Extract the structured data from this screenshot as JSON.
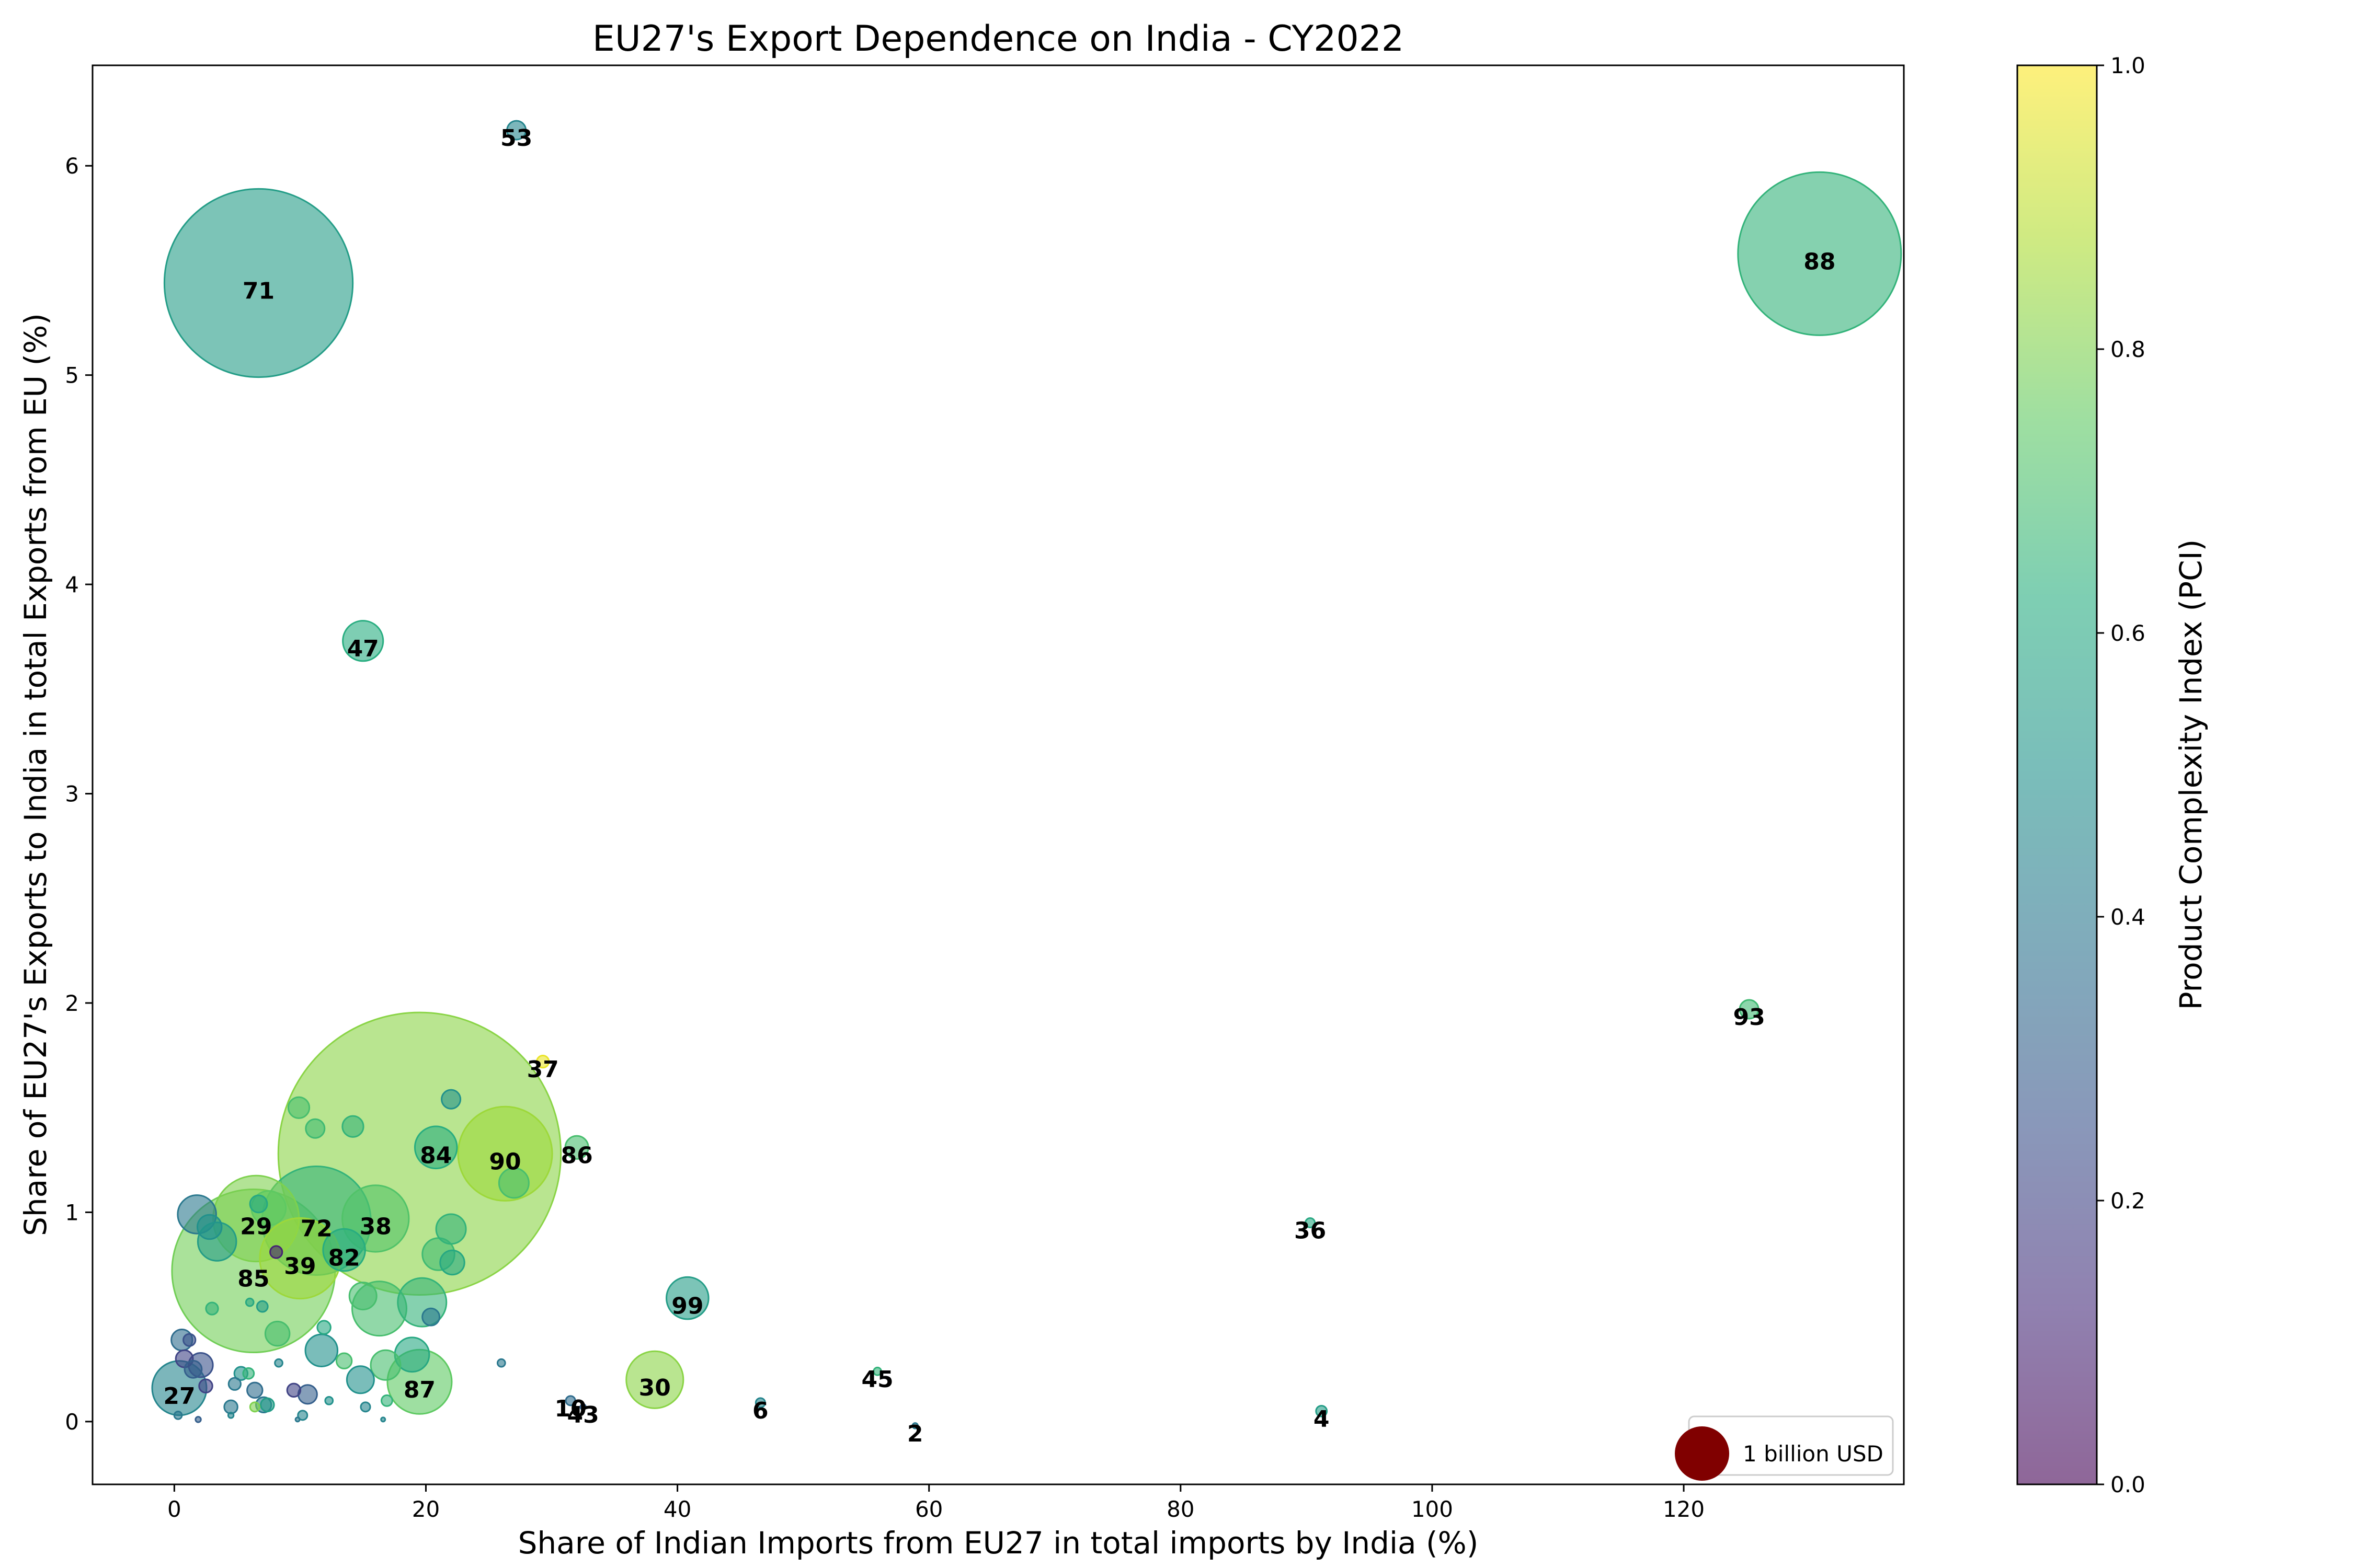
{
  "chart_data": {
    "type": "scatter",
    "title": "EU27's Export Dependence on India - CY2022",
    "xlabel": "Share of Indian Imports from EU27 in total imports by India (%)",
    "ylabel": "Share of EU27's Exports to India in total Exports from EU (%)",
    "xlim": [
      -6.5,
      137.5
    ],
    "ylim": [
      -0.3,
      6.48
    ],
    "xticks": [
      0,
      20,
      40,
      60,
      80,
      100,
      120
    ],
    "yticks": [
      0,
      1,
      2,
      3,
      4,
      5,
      6
    ],
    "grid": false,
    "colormap": "viridis",
    "colorbar": {
      "label": "Product Complexity Index (PCI)",
      "range": [
        0.0,
        1.0
      ],
      "ticks": [
        "0.0",
        "0.2",
        "0.4",
        "0.6",
        "0.8",
        "1.0"
      ]
    },
    "size_legend": {
      "label": "1 billion USD",
      "x": 121.5,
      "y": -0.15,
      "color": "#800000",
      "size": 1.0
    },
    "points": [
      {
        "x": 6.7,
        "y": 5.44,
        "size": 12.0,
        "pci": 0.55,
        "label": "71"
      },
      {
        "x": 130.8,
        "y": 5.58,
        "size": 9.0,
        "pci": 0.65,
        "label": "88"
      },
      {
        "x": 27.2,
        "y": 6.17,
        "size": 0.12,
        "pci": 0.45,
        "label": "53"
      },
      {
        "x": 15.0,
        "y": 3.73,
        "size": 0.55,
        "pci": 0.62,
        "label": "47"
      },
      {
        "x": 125.2,
        "y": 1.97,
        "size": 0.12,
        "pci": 0.68,
        "label": "93"
      },
      {
        "x": 29.3,
        "y": 1.72,
        "size": 0.05,
        "pci": 0.97,
        "label": "37"
      },
      {
        "x": 19.5,
        "y": 1.28,
        "size": 27.0,
        "pci": 0.82,
        "label": ""
      },
      {
        "x": 26.3,
        "y": 1.28,
        "size": 3.0,
        "pci": 0.85,
        "label": "90"
      },
      {
        "x": 20.8,
        "y": 1.31,
        "size": 0.6,
        "pci": 0.62,
        "label": "84"
      },
      {
        "x": 32.0,
        "y": 1.31,
        "size": 0.18,
        "pci": 0.7,
        "label": "86"
      },
      {
        "x": 22.0,
        "y": 1.54,
        "size": 0.12,
        "pci": 0.5,
        "label": ""
      },
      {
        "x": 6.5,
        "y": 0.97,
        "size": 2.5,
        "pci": 0.8,
        "label": "29"
      },
      {
        "x": 11.3,
        "y": 0.96,
        "size": 4.0,
        "pci": 0.65,
        "label": "72"
      },
      {
        "x": 16.0,
        "y": 0.97,
        "size": 1.5,
        "pci": 0.72,
        "label": "38"
      },
      {
        "x": 13.5,
        "y": 0.82,
        "size": 0.6,
        "pci": 0.62,
        "label": "82"
      },
      {
        "x": 10.0,
        "y": 0.78,
        "size": 2.2,
        "pci": 0.85,
        "label": "39"
      },
      {
        "x": 6.3,
        "y": 0.72,
        "size": 9.0,
        "pci": 0.78,
        "label": "85"
      },
      {
        "x": 40.8,
        "y": 0.59,
        "size": 0.6,
        "pci": 0.55,
        "label": "99"
      },
      {
        "x": 90.3,
        "y": 0.95,
        "size": 0.03,
        "pci": 0.6,
        "label": "36"
      },
      {
        "x": 38.2,
        "y": 0.2,
        "size": 1.1,
        "pci": 0.82,
        "label": "30"
      },
      {
        "x": 19.5,
        "y": 0.19,
        "size": 1.4,
        "pci": 0.75,
        "label": "87"
      },
      {
        "x": 0.4,
        "y": 0.16,
        "size": 1.0,
        "pci": 0.45,
        "label": "27"
      },
      {
        "x": 55.9,
        "y": 0.24,
        "size": 0.02,
        "pci": 0.65,
        "label": "45"
      },
      {
        "x": 31.5,
        "y": 0.1,
        "size": 0.03,
        "pci": 0.35,
        "label": "10"
      },
      {
        "x": 32.5,
        "y": 0.07,
        "size": 0.01,
        "pci": 0.3,
        "label": "43"
      },
      {
        "x": 46.6,
        "y": 0.09,
        "size": 0.03,
        "pci": 0.45,
        "label": "6"
      },
      {
        "x": 58.9,
        "y": -0.02,
        "size": 0.01,
        "pci": 0.4,
        "label": "2"
      },
      {
        "x": 91.2,
        "y": 0.05,
        "size": 0.04,
        "pci": 0.55,
        "label": "4"
      },
      {
        "x": 1.8,
        "y": 0.99,
        "size": 0.5,
        "pci": 0.4,
        "label": ""
      },
      {
        "x": 2.8,
        "y": 0.93,
        "size": 0.2,
        "pci": 0.5,
        "label": ""
      },
      {
        "x": 3.4,
        "y": 0.86,
        "size": 0.5,
        "pci": 0.55,
        "label": ""
      },
      {
        "x": 6.7,
        "y": 1.04,
        "size": 0.1,
        "pci": 0.6,
        "label": ""
      },
      {
        "x": 7.5,
        "y": 1.02,
        "size": 0.4,
        "pci": 0.75,
        "label": ""
      },
      {
        "x": 9.9,
        "y": 1.5,
        "size": 0.15,
        "pci": 0.7,
        "label": ""
      },
      {
        "x": 11.2,
        "y": 1.4,
        "size": 0.12,
        "pci": 0.68,
        "label": ""
      },
      {
        "x": 14.2,
        "y": 1.41,
        "size": 0.15,
        "pci": 0.65,
        "label": ""
      },
      {
        "x": 27.0,
        "y": 1.14,
        "size": 0.3,
        "pci": 0.7,
        "label": ""
      },
      {
        "x": 22.0,
        "y": 0.92,
        "size": 0.3,
        "pci": 0.65,
        "label": ""
      },
      {
        "x": 21.0,
        "y": 0.8,
        "size": 0.35,
        "pci": 0.68,
        "label": ""
      },
      {
        "x": 22.1,
        "y": 0.76,
        "size": 0.2,
        "pci": 0.6,
        "label": ""
      },
      {
        "x": 8.1,
        "y": 0.81,
        "size": 0.05,
        "pci": 0.1,
        "label": ""
      },
      {
        "x": 16.3,
        "y": 0.54,
        "size": 1.0,
        "pci": 0.7,
        "label": ""
      },
      {
        "x": 19.7,
        "y": 0.57,
        "size": 0.8,
        "pci": 0.65,
        "label": ""
      },
      {
        "x": 15.0,
        "y": 0.6,
        "size": 0.25,
        "pci": 0.7,
        "label": ""
      },
      {
        "x": 20.4,
        "y": 0.5,
        "size": 0.1,
        "pci": 0.4,
        "label": ""
      },
      {
        "x": 3.0,
        "y": 0.54,
        "size": 0.05,
        "pci": 0.65,
        "label": ""
      },
      {
        "x": 7.0,
        "y": 0.55,
        "size": 0.04,
        "pci": 0.55,
        "label": ""
      },
      {
        "x": 6.0,
        "y": 0.57,
        "size": 0.02,
        "pci": 0.6,
        "label": ""
      },
      {
        "x": 8.2,
        "y": 0.42,
        "size": 0.2,
        "pci": 0.7,
        "label": ""
      },
      {
        "x": 11.7,
        "y": 0.34,
        "size": 0.35,
        "pci": 0.5,
        "label": ""
      },
      {
        "x": 11.9,
        "y": 0.45,
        "size": 0.06,
        "pci": 0.6,
        "label": ""
      },
      {
        "x": 13.5,
        "y": 0.29,
        "size": 0.08,
        "pci": 0.7,
        "label": ""
      },
      {
        "x": 18.9,
        "y": 0.32,
        "size": 0.4,
        "pci": 0.6,
        "label": ""
      },
      {
        "x": 16.8,
        "y": 0.27,
        "size": 0.3,
        "pci": 0.7,
        "label": ""
      },
      {
        "x": 14.8,
        "y": 0.2,
        "size": 0.25,
        "pci": 0.5,
        "label": ""
      },
      {
        "x": 0.6,
        "y": 0.39,
        "size": 0.15,
        "pci": 0.35,
        "label": ""
      },
      {
        "x": 1.2,
        "y": 0.39,
        "size": 0.05,
        "pci": 0.25,
        "label": ""
      },
      {
        "x": 0.8,
        "y": 0.3,
        "size": 0.1,
        "pci": 0.2,
        "label": ""
      },
      {
        "x": 2.1,
        "y": 0.27,
        "size": 0.2,
        "pci": 0.25,
        "label": ""
      },
      {
        "x": 1.5,
        "y": 0.25,
        "size": 0.1,
        "pci": 0.3,
        "label": ""
      },
      {
        "x": 2.5,
        "y": 0.17,
        "size": 0.06,
        "pci": 0.2,
        "label": ""
      },
      {
        "x": 5.3,
        "y": 0.23,
        "size": 0.06,
        "pci": 0.5,
        "label": ""
      },
      {
        "x": 5.9,
        "y": 0.23,
        "size": 0.04,
        "pci": 0.65,
        "label": ""
      },
      {
        "x": 4.8,
        "y": 0.18,
        "size": 0.05,
        "pci": 0.4,
        "label": ""
      },
      {
        "x": 6.4,
        "y": 0.15,
        "size": 0.08,
        "pci": 0.35,
        "label": ""
      },
      {
        "x": 9.5,
        "y": 0.15,
        "size": 0.06,
        "pci": 0.2,
        "label": ""
      },
      {
        "x": 10.6,
        "y": 0.13,
        "size": 0.12,
        "pci": 0.3,
        "label": ""
      },
      {
        "x": 8.3,
        "y": 0.28,
        "size": 0.02,
        "pci": 0.45,
        "label": ""
      },
      {
        "x": 12.3,
        "y": 0.1,
        "size": 0.02,
        "pci": 0.5,
        "label": ""
      },
      {
        "x": 16.9,
        "y": 0.1,
        "size": 0.04,
        "pci": 0.65,
        "label": ""
      },
      {
        "x": 4.5,
        "y": 0.07,
        "size": 0.06,
        "pci": 0.4,
        "label": ""
      },
      {
        "x": 6.4,
        "y": 0.07,
        "size": 0.03,
        "pci": 0.8,
        "label": ""
      },
      {
        "x": 7.1,
        "y": 0.08,
        "size": 0.08,
        "pci": 0.4,
        "label": ""
      },
      {
        "x": 7.4,
        "y": 0.08,
        "size": 0.06,
        "pci": 0.55,
        "label": ""
      },
      {
        "x": 15.2,
        "y": 0.07,
        "size": 0.03,
        "pci": 0.45,
        "label": ""
      },
      {
        "x": 10.2,
        "y": 0.03,
        "size": 0.03,
        "pci": 0.45,
        "label": ""
      },
      {
        "x": 0.3,
        "y": 0.03,
        "size": 0.02,
        "pci": 0.4,
        "label": ""
      },
      {
        "x": 4.5,
        "y": 0.03,
        "size": 0.01,
        "pci": 0.45,
        "label": ""
      },
      {
        "x": 1.9,
        "y": 0.01,
        "size": 0.01,
        "pci": 0.3,
        "label": ""
      },
      {
        "x": 16.6,
        "y": 0.01,
        "size": 0.005,
        "pci": 0.45,
        "label": ""
      },
      {
        "x": 26.0,
        "y": 0.28,
        "size": 0.02,
        "pci": 0.4,
        "label": ""
      },
      {
        "x": 9.8,
        "y": 0.01,
        "size": 0.005,
        "pci": 0.4,
        "label": ""
      }
    ]
  }
}
